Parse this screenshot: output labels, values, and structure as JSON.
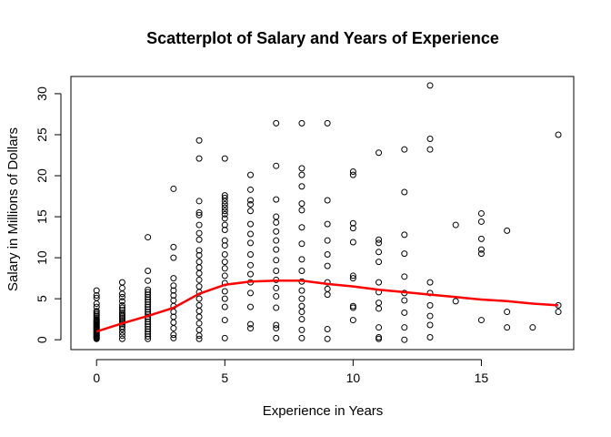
{
  "chart_data": {
    "type": "scatter",
    "title": "Scatterplot of Salary and Years of Experience",
    "xlabel": "Experience in Years",
    "ylabel": "Salary in Millions of Dollars",
    "xlim": [
      -1,
      18.6
    ],
    "ylim": [
      -1.2,
      32.1
    ],
    "xticks": [
      0,
      5,
      10,
      15
    ],
    "yticks": [
      0,
      5,
      10,
      15,
      20,
      25,
      30
    ],
    "point_color": "#000000",
    "line_color": "#ff0000",
    "grid": false,
    "legend": "none",
    "points": [
      [
        0,
        0.1
      ],
      [
        0,
        0.2
      ],
      [
        0,
        0.3
      ],
      [
        0,
        0.4
      ],
      [
        0,
        0.5
      ],
      [
        0,
        0.6
      ],
      [
        0,
        0.7
      ],
      [
        0,
        0.8
      ],
      [
        0,
        0.9
      ],
      [
        0,
        1.0
      ],
      [
        0,
        1.1
      ],
      [
        0,
        1.2
      ],
      [
        0,
        1.3
      ],
      [
        0,
        1.4
      ],
      [
        0,
        1.5
      ],
      [
        0,
        1.6
      ],
      [
        0,
        1.7
      ],
      [
        0,
        1.8
      ],
      [
        0,
        1.9
      ],
      [
        0,
        2.0
      ],
      [
        0,
        2.1
      ],
      [
        0,
        2.2
      ],
      [
        0,
        2.3
      ],
      [
        0,
        2.4
      ],
      [
        0,
        2.5
      ],
      [
        0,
        2.7
      ],
      [
        0,
        2.9
      ],
      [
        0,
        3.1
      ],
      [
        0,
        3.3
      ],
      [
        0,
        3.5
      ],
      [
        0,
        4.0
      ],
      [
        0,
        4.4
      ],
      [
        0,
        5.1
      ],
      [
        0,
        5.4
      ],
      [
        0,
        6.0
      ],
      [
        1,
        0.1
      ],
      [
        1,
        0.5
      ],
      [
        1,
        0.9
      ],
      [
        1,
        1.3
      ],
      [
        1,
        1.6
      ],
      [
        1,
        1.9
      ],
      [
        1,
        2.1
      ],
      [
        1,
        2.3
      ],
      [
        1,
        2.5
      ],
      [
        1,
        2.7
      ],
      [
        1,
        2.9
      ],
      [
        1,
        3.1
      ],
      [
        1,
        3.3
      ],
      [
        1,
        3.6
      ],
      [
        1,
        3.9
      ],
      [
        1,
        4.2
      ],
      [
        1,
        4.7
      ],
      [
        1,
        5.2
      ],
      [
        1,
        5.6
      ],
      [
        1,
        6.3
      ],
      [
        1,
        7.0
      ],
      [
        2,
        0.1
      ],
      [
        2,
        0.4
      ],
      [
        2,
        0.7
      ],
      [
        2,
        1.0
      ],
      [
        2,
        1.3
      ],
      [
        2,
        1.6
      ],
      [
        2,
        1.9
      ],
      [
        2,
        2.2
      ],
      [
        2,
        2.5
      ],
      [
        2,
        2.8
      ],
      [
        2,
        3.1
      ],
      [
        2,
        3.4
      ],
      [
        2,
        3.7
      ],
      [
        2,
        4.0
      ],
      [
        2,
        4.3
      ],
      [
        2,
        4.6
      ],
      [
        2,
        4.9
      ],
      [
        2,
        5.2
      ],
      [
        2,
        5.5
      ],
      [
        2,
        5.8
      ],
      [
        2,
        6.1
      ],
      [
        2,
        7.2
      ],
      [
        2,
        8.4
      ],
      [
        2,
        12.5
      ],
      [
        3,
        0.2
      ],
      [
        3,
        0.6
      ],
      [
        3,
        1.4
      ],
      [
        3,
        2.1
      ],
      [
        3,
        2.8
      ],
      [
        3,
        3.4
      ],
      [
        3,
        4.1
      ],
      [
        3,
        4.8
      ],
      [
        3,
        5.4
      ],
      [
        3,
        6.0
      ],
      [
        3,
        6.6
      ],
      [
        3,
        7.5
      ],
      [
        3,
        10.0
      ],
      [
        3,
        11.3
      ],
      [
        3,
        18.4
      ],
      [
        4,
        0.1
      ],
      [
        4,
        0.5
      ],
      [
        4,
        1.2
      ],
      [
        4,
        2.0
      ],
      [
        4,
        2.8
      ],
      [
        4,
        3.5
      ],
      [
        4,
        4.2
      ],
      [
        4,
        5.0
      ],
      [
        4,
        5.8
      ],
      [
        4,
        6.5
      ],
      [
        4,
        7.3
      ],
      [
        4,
        8.1
      ],
      [
        4,
        8.8
      ],
      [
        4,
        9.5
      ],
      [
        4,
        10.3
      ],
      [
        4,
        10.9
      ],
      [
        4,
        12.2
      ],
      [
        4,
        13.0
      ],
      [
        4,
        14.0
      ],
      [
        4,
        15.2
      ],
      [
        4,
        15.5
      ],
      [
        4,
        16.9
      ],
      [
        4,
        22.1
      ],
      [
        4,
        24.3
      ],
      [
        5,
        0.2
      ],
      [
        5,
        2.4
      ],
      [
        5,
        4.0
      ],
      [
        5,
        5.0
      ],
      [
        5,
        5.9
      ],
      [
        5,
        6.9
      ],
      [
        5,
        7.8
      ],
      [
        5,
        8.7
      ],
      [
        5,
        9.5
      ],
      [
        5,
        10.4
      ],
      [
        5,
        11.5
      ],
      [
        5,
        12.1
      ],
      [
        5,
        13.4
      ],
      [
        5,
        14.0
      ],
      [
        5,
        14.8
      ],
      [
        5,
        15.3
      ],
      [
        5,
        15.7
      ],
      [
        5,
        16.1
      ],
      [
        5,
        16.5
      ],
      [
        5,
        16.9
      ],
      [
        5,
        17.3
      ],
      [
        5,
        17.6
      ],
      [
        5,
        22.1
      ],
      [
        6,
        1.4
      ],
      [
        6,
        1.9
      ],
      [
        6,
        4.0
      ],
      [
        6,
        5.7
      ],
      [
        6,
        7.0
      ],
      [
        6,
        8.0
      ],
      [
        6,
        9.1
      ],
      [
        6,
        10.4
      ],
      [
        6,
        11.8
      ],
      [
        6,
        12.9
      ],
      [
        6,
        14.1
      ],
      [
        6,
        15.7
      ],
      [
        6,
        16.5
      ],
      [
        6,
        17.0
      ],
      [
        6,
        18.3
      ],
      [
        6,
        20.1
      ],
      [
        7,
        0.2
      ],
      [
        7,
        1.4
      ],
      [
        7,
        1.8
      ],
      [
        7,
        3.9
      ],
      [
        7,
        5.3
      ],
      [
        7,
        6.3
      ],
      [
        7,
        7.3
      ],
      [
        7,
        8.4
      ],
      [
        7,
        9.7
      ],
      [
        7,
        11.0
      ],
      [
        7,
        12.1
      ],
      [
        7,
        13.2
      ],
      [
        7,
        14.3
      ],
      [
        7,
        15.0
      ],
      [
        7,
        17.1
      ],
      [
        7,
        21.2
      ],
      [
        7,
        26.4
      ],
      [
        8,
        0.2
      ],
      [
        8,
        1.2
      ],
      [
        8,
        2.5
      ],
      [
        8,
        3.4
      ],
      [
        8,
        4.1
      ],
      [
        8,
        5.0
      ],
      [
        8,
        6.0
      ],
      [
        8,
        7.1
      ],
      [
        8,
        8.4
      ],
      [
        8,
        9.8
      ],
      [
        8,
        11.7
      ],
      [
        8,
        13.7
      ],
      [
        8,
        15.8
      ],
      [
        8,
        16.6
      ],
      [
        8,
        18.7
      ],
      [
        8,
        20.1
      ],
      [
        8,
        20.9
      ],
      [
        8,
        26.4
      ],
      [
        9,
        0.1
      ],
      [
        9,
        1.3
      ],
      [
        9,
        5.5
      ],
      [
        9,
        6.2
      ],
      [
        9,
        7.0
      ],
      [
        9,
        9.0
      ],
      [
        9,
        10.4
      ],
      [
        9,
        12.1
      ],
      [
        9,
        14.1
      ],
      [
        9,
        17.0
      ],
      [
        9,
        26.4
      ],
      [
        10,
        2.4
      ],
      [
        10,
        3.9
      ],
      [
        10,
        4.1
      ],
      [
        10,
        7.5
      ],
      [
        10,
        7.8
      ],
      [
        10,
        11.9
      ],
      [
        10,
        13.6
      ],
      [
        10,
        14.2
      ],
      [
        10,
        20.1
      ],
      [
        10,
        20.5
      ],
      [
        11,
        0.1
      ],
      [
        11,
        0.3
      ],
      [
        11,
        1.5
      ],
      [
        11,
        3.8
      ],
      [
        11,
        4.5
      ],
      [
        11,
        5.8
      ],
      [
        11,
        7.0
      ],
      [
        11,
        9.5
      ],
      [
        11,
        10.7
      ],
      [
        11,
        11.8
      ],
      [
        11,
        12.2
      ],
      [
        11,
        22.8
      ],
      [
        12,
        0.0
      ],
      [
        12,
        1.5
      ],
      [
        12,
        3.3
      ],
      [
        12,
        4.8
      ],
      [
        12,
        5.7
      ],
      [
        12,
        7.7
      ],
      [
        12,
        10.5
      ],
      [
        12,
        12.8
      ],
      [
        12,
        18.0
      ],
      [
        12,
        23.2
      ],
      [
        13,
        0.3
      ],
      [
        13,
        1.8
      ],
      [
        13,
        2.9
      ],
      [
        13,
        4.2
      ],
      [
        13,
        5.7
      ],
      [
        13,
        7.0
      ],
      [
        13,
        23.2
      ],
      [
        13,
        24.5
      ],
      [
        13,
        31.0
      ],
      [
        14,
        4.7
      ],
      [
        14,
        14.0
      ],
      [
        15,
        2.4
      ],
      [
        15,
        10.5
      ],
      [
        15,
        11.0
      ],
      [
        15,
        12.3
      ],
      [
        15,
        14.4
      ],
      [
        15,
        15.4
      ],
      [
        16,
        1.5
      ],
      [
        16,
        3.4
      ],
      [
        16,
        13.3
      ],
      [
        17,
        1.5
      ],
      [
        18,
        3.4
      ],
      [
        18,
        4.2
      ],
      [
        18,
        25.0
      ]
    ],
    "smooth_line": {
      "x": [
        0,
        1,
        2,
        3,
        4,
        5,
        6,
        7,
        8,
        9,
        10,
        11,
        12,
        13,
        14,
        15,
        16,
        17,
        18
      ],
      "y": [
        1.0,
        2.0,
        2.9,
        3.9,
        5.6,
        6.7,
        7.1,
        7.2,
        7.2,
        6.8,
        6.5,
        6.1,
        5.8,
        5.5,
        5.2,
        4.9,
        4.7,
        4.4,
        4.2
      ]
    }
  }
}
